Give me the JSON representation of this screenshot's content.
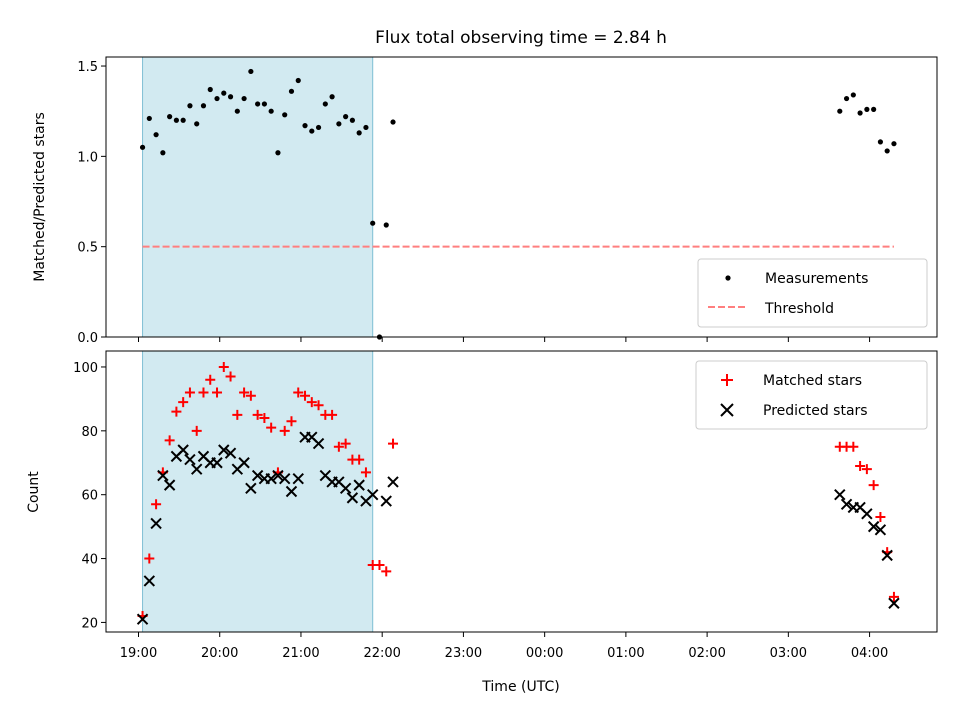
{
  "chart_data": [
    {
      "type": "scatter",
      "title": "Flux total observing time = 2.84 h",
      "xlabel": "",
      "ylabel": "Matched/Predicted stars",
      "xlim_hours": [
        18.6,
        28.83
      ],
      "ylim": [
        0,
        1.55
      ],
      "yticks": [
        0.0,
        0.5,
        1.0,
        1.5
      ],
      "ytick_labels": [
        "0.0",
        "0.5",
        "1.0",
        "1.5"
      ],
      "shaded_span": {
        "x": [
          "19:03",
          "21:53"
        ],
        "color": "#add8e6"
      },
      "legend_position": "lower-right",
      "series": [
        {
          "name": "Measurements",
          "kind": "points",
          "color": "#000000",
          "points": [
            [
              "19:03",
              1.05
            ],
            [
              "19:08",
              1.21
            ],
            [
              "19:13",
              1.12
            ],
            [
              "19:18",
              1.02
            ],
            [
              "19:23",
              1.22
            ],
            [
              "19:28",
              1.2
            ],
            [
              "19:33",
              1.2
            ],
            [
              "19:38",
              1.28
            ],
            [
              "19:43",
              1.18
            ],
            [
              "19:48",
              1.28
            ],
            [
              "19:53",
              1.37
            ],
            [
              "19:58",
              1.32
            ],
            [
              "20:03",
              1.35
            ],
            [
              "20:08",
              1.33
            ],
            [
              "20:13",
              1.25
            ],
            [
              "20:18",
              1.32
            ],
            [
              "20:23",
              1.47
            ],
            [
              "20:28",
              1.29
            ],
            [
              "20:33",
              1.29
            ],
            [
              "20:38",
              1.25
            ],
            [
              "20:43",
              1.02
            ],
            [
              "20:48",
              1.23
            ],
            [
              "20:53",
              1.36
            ],
            [
              "20:58",
              1.42
            ],
            [
              "21:03",
              1.17
            ],
            [
              "21:08",
              1.14
            ],
            [
              "21:13",
              1.16
            ],
            [
              "21:18",
              1.29
            ],
            [
              "21:23",
              1.33
            ],
            [
              "21:28",
              1.18
            ],
            [
              "21:33",
              1.22
            ],
            [
              "21:38",
              1.2
            ],
            [
              "21:43",
              1.13
            ],
            [
              "21:48",
              1.16
            ],
            [
              "21:53",
              0.63
            ],
            [
              "21:58",
              0.0
            ],
            [
              "22:03",
              0.62
            ],
            [
              "22:08",
              1.19
            ],
            [
              "03:38",
              1.25
            ],
            [
              "03:43",
              1.32
            ],
            [
              "03:48",
              1.34
            ],
            [
              "03:53",
              1.24
            ],
            [
              "03:58",
              1.26
            ],
            [
              "04:03",
              1.26
            ],
            [
              "04:08",
              1.08
            ],
            [
              "04:13",
              1.03
            ],
            [
              "04:18",
              1.07
            ]
          ]
        },
        {
          "name": "Threshold",
          "kind": "dashed-line",
          "color": "#ff7f7f",
          "points": [
            [
              "19:03",
              0.5
            ],
            [
              "04:18",
              0.5
            ]
          ]
        }
      ]
    },
    {
      "type": "scatter",
      "title": "",
      "xlabel": "Time (UTC)",
      "ylabel": "Count",
      "xlim_hours": [
        18.6,
        28.83
      ],
      "ylim": [
        17,
        105
      ],
      "yticks": [
        20,
        40,
        60,
        80,
        100
      ],
      "ytick_labels": [
        "20",
        "40",
        "60",
        "80",
        "100"
      ],
      "xticks": [
        "19:00",
        "20:00",
        "21:00",
        "22:00",
        "23:00",
        "00:00",
        "01:00",
        "02:00",
        "03:00",
        "04:00"
      ],
      "shaded_span": {
        "x": [
          "19:03",
          "21:53"
        ],
        "color": "#add8e6"
      },
      "legend_position": "upper-right",
      "series": [
        {
          "name": "Matched stars",
          "kind": "plus",
          "color": "#ff0000",
          "points": [
            [
              "19:03",
              22
            ],
            [
              "19:08",
              40
            ],
            [
              "19:13",
              57
            ],
            [
              "19:18",
              67
            ],
            [
              "19:23",
              77
            ],
            [
              "19:28",
              86
            ],
            [
              "19:33",
              89
            ],
            [
              "19:38",
              92
            ],
            [
              "19:43",
              80
            ],
            [
              "19:48",
              92
            ],
            [
              "19:53",
              96
            ],
            [
              "19:58",
              92
            ],
            [
              "20:03",
              100
            ],
            [
              "20:08",
              97
            ],
            [
              "20:13",
              85
            ],
            [
              "20:18",
              92
            ],
            [
              "20:23",
              91
            ],
            [
              "20:28",
              85
            ],
            [
              "20:33",
              84
            ],
            [
              "20:38",
              81
            ],
            [
              "20:43",
              67
            ],
            [
              "20:48",
              80
            ],
            [
              "20:53",
              83
            ],
            [
              "20:58",
              92
            ],
            [
              "21:03",
              91
            ],
            [
              "21:08",
              89
            ],
            [
              "21:13",
              88
            ],
            [
              "21:18",
              85
            ],
            [
              "21:23",
              85
            ],
            [
              "21:28",
              75
            ],
            [
              "21:33",
              76
            ],
            [
              "21:38",
              71
            ],
            [
              "21:43",
              71
            ],
            [
              "21:48",
              67
            ],
            [
              "21:53",
              38
            ],
            [
              "21:58",
              38
            ],
            [
              "22:03",
              36
            ],
            [
              "22:08",
              76
            ],
            [
              "03:38",
              75
            ],
            [
              "03:43",
              75
            ],
            [
              "03:48",
              75
            ],
            [
              "03:53",
              69
            ],
            [
              "03:58",
              68
            ],
            [
              "04:03",
              63
            ],
            [
              "04:08",
              53
            ],
            [
              "04:13",
              42
            ],
            [
              "04:18",
              28
            ]
          ]
        },
        {
          "name": "Predicted stars",
          "kind": "x",
          "color": "#000000",
          "points": [
            [
              "19:03",
              21
            ],
            [
              "19:08",
              33
            ],
            [
              "19:13",
              51
            ],
            [
              "19:18",
              66
            ],
            [
              "19:23",
              63
            ],
            [
              "19:28",
              72
            ],
            [
              "19:33",
              74
            ],
            [
              "19:38",
              71
            ],
            [
              "19:43",
              68
            ],
            [
              "19:48",
              72
            ],
            [
              "19:53",
              70
            ],
            [
              "19:58",
              70
            ],
            [
              "20:03",
              74
            ],
            [
              "20:08",
              73
            ],
            [
              "20:13",
              68
            ],
            [
              "20:18",
              70
            ],
            [
              "20:23",
              62
            ],
            [
              "20:28",
              66
            ],
            [
              "20:33",
              65
            ],
            [
              "20:38",
              65
            ],
            [
              "20:43",
              66
            ],
            [
              "20:48",
              65
            ],
            [
              "20:53",
              61
            ],
            [
              "20:58",
              65
            ],
            [
              "21:03",
              78
            ],
            [
              "21:08",
              78
            ],
            [
              "21:13",
              76
            ],
            [
              "21:18",
              66
            ],
            [
              "21:23",
              64
            ],
            [
              "21:28",
              64
            ],
            [
              "21:33",
              62
            ],
            [
              "21:38",
              59
            ],
            [
              "21:43",
              63
            ],
            [
              "21:48",
              58
            ],
            [
              "21:53",
              60
            ],
            [
              "22:03",
              58
            ],
            [
              "22:08",
              64
            ],
            [
              "03:38",
              60
            ],
            [
              "03:43",
              57
            ],
            [
              "03:48",
              56
            ],
            [
              "03:53",
              56
            ],
            [
              "03:58",
              54
            ],
            [
              "04:03",
              50
            ],
            [
              "04:08",
              49
            ],
            [
              "04:13",
              41
            ],
            [
              "04:18",
              26
            ]
          ]
        }
      ]
    }
  ]
}
